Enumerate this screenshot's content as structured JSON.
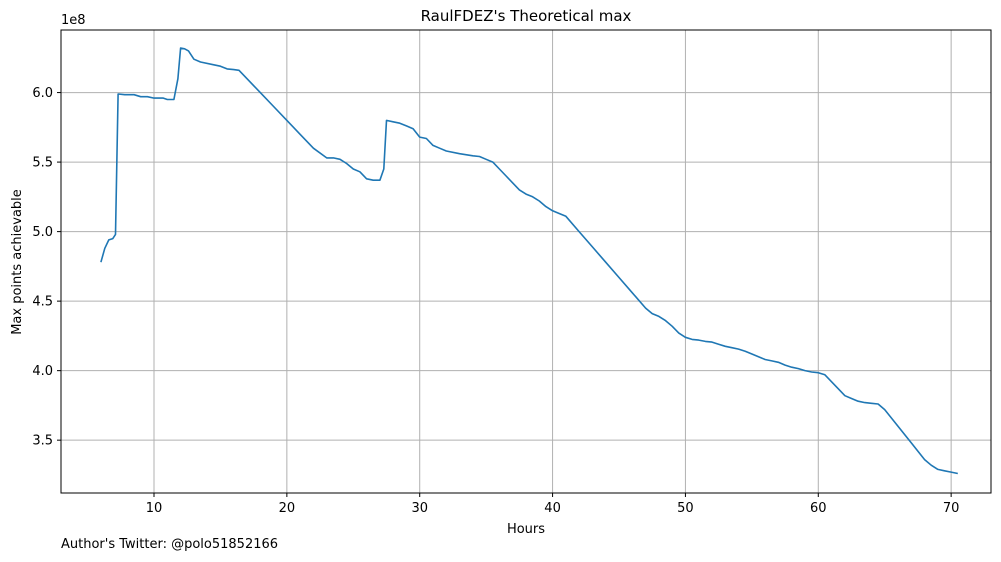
{
  "chart_data": {
    "type": "line",
    "title": "RaulFDEZ's Theoretical max",
    "xlabel": "Hours",
    "ylabel": "Max points achievable",
    "offset_label": "1e8",
    "xlim": [
      3,
      73
    ],
    "ylim": [
      3.12,
      6.45
    ],
    "xticks": [
      10,
      20,
      30,
      40,
      50,
      60,
      70
    ],
    "yticks": [
      3.5,
      4.0,
      4.5,
      5.0,
      5.5,
      6.0
    ],
    "ytick_labels": [
      "3.5",
      "4.0",
      "4.5",
      "5.0",
      "5.5",
      "6.0"
    ],
    "grid": true,
    "line_color": "#1f77b4",
    "series": [
      {
        "x": [
          6.0,
          6.3,
          6.6,
          6.9,
          7.1,
          7.3,
          7.8,
          8.5,
          9.0,
          9.5,
          10.0,
          10.7,
          11.0,
          11.5,
          11.8,
          12.0,
          12.3,
          12.6,
          13.0,
          13.5,
          14.5,
          15.0,
          15.5,
          16.0,
          16.4,
          17.0,
          18.0,
          19.0,
          20.0,
          21.0,
          22.0,
          23.0,
          23.5,
          24.0,
          24.5,
          25.0,
          25.5,
          26.0,
          26.5,
          27.0,
          27.3,
          27.5,
          28.0,
          28.5,
          29.0,
          29.5,
          30.0,
          30.5,
          31.0,
          31.5,
          32.0,
          33.0,
          34.0,
          34.5,
          35.0,
          35.5,
          36.0,
          36.5,
          37.0,
          37.5,
          38.0,
          38.5,
          39.0,
          39.5,
          40.0,
          40.5,
          41.0,
          42.0,
          43.0,
          44.0,
          45.0,
          46.0,
          47.0,
          47.5,
          48.0,
          48.5,
          49.0,
          49.5,
          50.0,
          50.5,
          51.0,
          51.5,
          52.0,
          52.5,
          53.0,
          53.5,
          54.0,
          54.5,
          55.0,
          55.5,
          56.0,
          56.5,
          57.0,
          57.5,
          58.0,
          58.5,
          59.0,
          59.5,
          60.0,
          60.5,
          61.0,
          61.5,
          62.0,
          62.5,
          63.0,
          63.5,
          64.0,
          64.5,
          65.0,
          66.0,
          67.0,
          68.0,
          68.5,
          69.0,
          69.5,
          70.0,
          70.5
        ],
        "y": [
          4.78,
          4.88,
          4.94,
          4.95,
          4.98,
          5.99,
          5.985,
          5.985,
          5.97,
          5.97,
          5.96,
          5.96,
          5.95,
          5.95,
          6.1,
          6.32,
          6.315,
          6.3,
          6.24,
          6.22,
          6.2,
          6.19,
          6.17,
          6.165,
          6.16,
          6.1,
          6.0,
          5.9,
          5.8,
          5.7,
          5.6,
          5.53,
          5.53,
          5.52,
          5.49,
          5.45,
          5.43,
          5.38,
          5.37,
          5.37,
          5.45,
          5.8,
          5.79,
          5.78,
          5.76,
          5.74,
          5.68,
          5.67,
          5.62,
          5.6,
          5.58,
          5.56,
          5.545,
          5.54,
          5.52,
          5.5,
          5.45,
          5.4,
          5.35,
          5.3,
          5.27,
          5.25,
          5.22,
          5.18,
          5.15,
          5.13,
          5.11,
          5.0,
          4.89,
          4.78,
          4.67,
          4.56,
          4.45,
          4.41,
          4.39,
          4.36,
          4.32,
          4.27,
          4.24,
          4.225,
          4.22,
          4.21,
          4.205,
          4.19,
          4.175,
          4.165,
          4.155,
          4.14,
          4.12,
          4.1,
          4.08,
          4.07,
          4.06,
          4.04,
          4.025,
          4.015,
          4.0,
          3.99,
          3.985,
          3.97,
          3.92,
          3.87,
          3.82,
          3.8,
          3.78,
          3.77,
          3.765,
          3.76,
          3.72,
          3.6,
          3.48,
          3.36,
          3.32,
          3.29,
          3.28,
          3.27,
          3.26
        ]
      }
    ]
  },
  "footnote": "Author's Twitter: @polo51852166"
}
